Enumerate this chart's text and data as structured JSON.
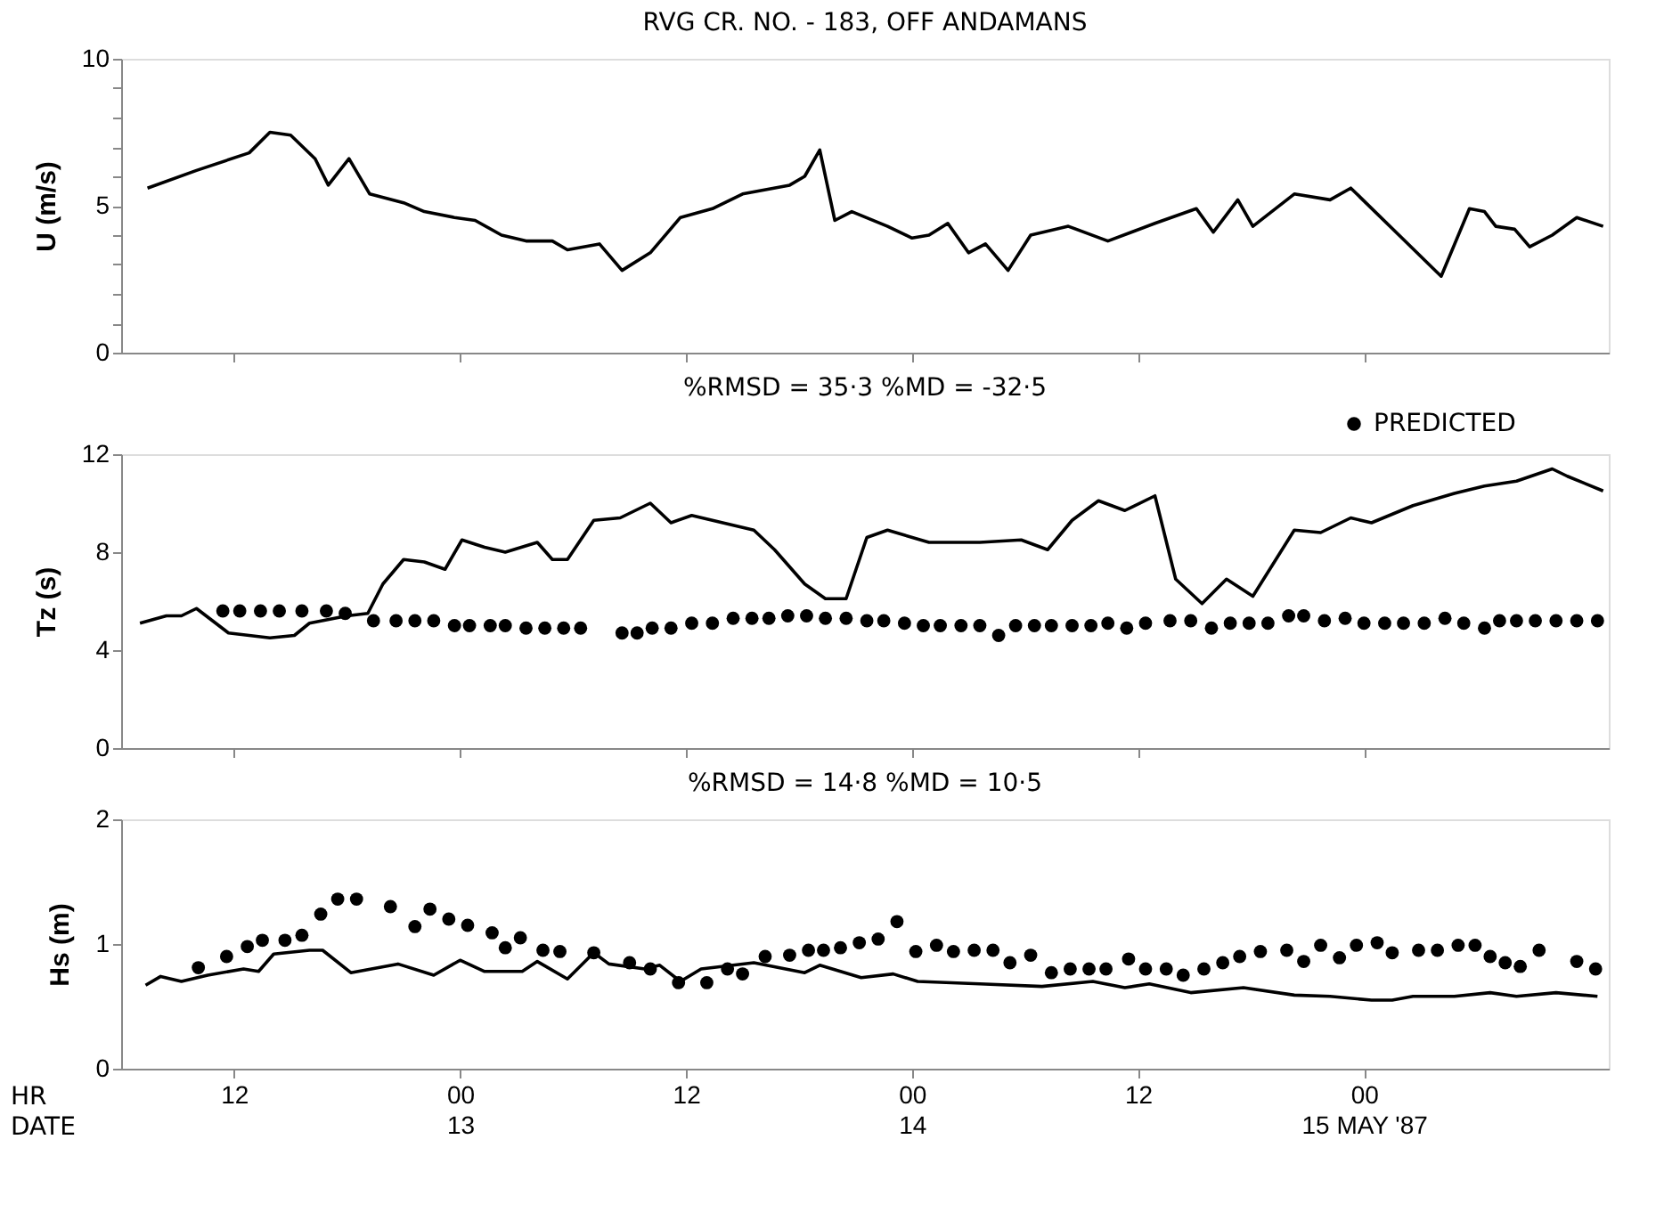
{
  "chart_data": [
    {
      "type": "line",
      "title": "RVG CR. NO. - 183, OFF ANDAMANS",
      "ylabel": "U (m/s)",
      "xlim": [
        "1987-05-12T06:00",
        "1987-05-15T13:00"
      ],
      "xticks": [
        {
          "value": "1987-05-12T12:00",
          "label": null
        },
        {
          "value": "1987-05-13T00:00",
          "label": null
        },
        {
          "value": "1987-05-13T12:00",
          "label": null
        },
        {
          "value": "1987-05-14T00:00",
          "label": null
        },
        {
          "value": "1987-05-14T12:00",
          "label": null
        },
        {
          "value": "1987-05-15T00:00",
          "label": null
        }
      ],
      "ylim": [
        0,
        10
      ],
      "yticks": [
        0,
        {
          "value": 1,
          "label": null
        },
        {
          "value": 2,
          "label": null
        },
        {
          "value": 3,
          "label": null
        },
        {
          "value": 4,
          "label": null
        },
        5,
        {
          "value": 6,
          "label": null
        },
        {
          "value": 7,
          "label": null
        },
        {
          "value": 8,
          "label": null
        },
        {
          "value": 9,
          "label": null
        },
        10
      ],
      "tick_labels": "y",
      "series": [
        {
          "type": "line",
          "color": "#000000",
          "x": [
            "1987-05-12T07:24",
            "1987-05-12T10:00",
            "1987-05-12T12:48",
            "1987-05-12T13:54",
            "1987-05-12T15:00",
            "1987-05-12T16:18",
            "1987-05-12T17:00",
            "1987-05-12T18:06",
            "1987-05-12T19:12",
            "1987-05-12T21:00",
            "1987-05-12T22:06",
            "1987-05-12T23:42",
            "1987-05-13T00:48",
            "1987-05-13T02:12",
            "1987-05-13T03:30",
            "1987-05-13T04:54",
            "1987-05-13T05:42",
            "1987-05-13T07:24",
            "1987-05-13T08:36",
            "1987-05-13T10:06",
            "1987-05-13T11:42",
            "1987-05-13T13:24",
            "1987-05-13T15:00",
            "1987-05-13T17:30",
            "1987-05-13T18:18",
            "1987-05-13T19:06",
            "1987-05-13T19:54",
            "1987-05-13T20:48",
            "1987-05-13T22:42",
            "1987-05-14T00:00",
            "1987-05-14T00:54",
            "1987-05-14T01:54",
            "1987-05-14T03:00",
            "1987-05-14T03:54",
            "1987-05-14T05:06",
            "1987-05-14T06:18",
            "1987-05-14T08:18",
            "1987-05-14T10:24",
            "1987-05-14T12:54",
            "1987-05-14T15:06",
            "1987-05-14T16:00",
            "1987-05-14T17:18",
            "1987-05-14T18:06",
            "1987-05-14T20:18",
            "1987-05-14T22:12",
            "1987-05-14T23:18",
            "1987-05-15T04:06",
            "1987-05-15T05:36",
            "1987-05-15T06:24",
            "1987-05-15T07:00",
            "1987-05-15T08:00",
            "1987-05-15T08:48",
            "1987-05-15T10:00",
            "1987-05-15T11:18",
            "1987-05-15T12:42"
          ],
          "values": [
            5.6,
            6.2,
            6.8,
            7.5,
            7.4,
            6.6,
            5.7,
            6.6,
            5.4,
            5.1,
            4.8,
            4.6,
            4.5,
            4.0,
            3.8,
            3.8,
            3.5,
            3.7,
            2.8,
            3.4,
            4.6,
            4.9,
            5.4,
            5.7,
            6.0,
            6.9,
            4.5,
            4.8,
            4.3,
            3.9,
            4.0,
            4.4,
            3.4,
            3.7,
            2.8,
            4.0,
            4.3,
            3.8,
            4.4,
            4.9,
            4.1,
            5.2,
            4.3,
            5.4,
            5.2,
            5.6,
            2.6,
            4.9,
            4.8,
            4.3,
            4.2,
            3.6,
            4.0,
            4.6,
            4.3
          ]
        }
      ]
    },
    {
      "type": "line",
      "title": "%RMSD = 35·3      %MD = -32·5",
      "ylabel": "Tz (s)",
      "xlim": [
        "1987-05-12T06:00",
        "1987-05-15T13:00"
      ],
      "xticks": [
        {
          "value": "1987-05-12T12:00",
          "label": null
        },
        {
          "value": "1987-05-13T00:00",
          "label": null
        },
        {
          "value": "1987-05-13T12:00",
          "label": null
        },
        {
          "value": "1987-05-14T00:00",
          "label": null
        },
        {
          "value": "1987-05-14T12:00",
          "label": null
        },
        {
          "value": "1987-05-15T00:00",
          "label": null
        }
      ],
      "ylim": [
        0,
        12
      ],
      "yticks": [
        0,
        4,
        8,
        12
      ],
      "tick_labels": "y",
      "legend": "top right",
      "series": [
        {
          "type": "line",
          "color": "#000000",
          "x": [
            "1987-05-12T07:00",
            "1987-05-12T08:24",
            "1987-05-12T09:12",
            "1987-05-12T10:00",
            "1987-05-12T11:42",
            "1987-05-12T13:54",
            "1987-05-12T15:12",
            "1987-05-12T16:00",
            "1987-05-12T18:00",
            "1987-05-12T19:06",
            "1987-05-12T19:54",
            "1987-05-12T21:00",
            "1987-05-12T22:06",
            "1987-05-12T23:12",
            "1987-05-13T00:06",
            "1987-05-13T01:18",
            "1987-05-13T02:24",
            "1987-05-13T04:06",
            "1987-05-13T04:54",
            "1987-05-13T05:42",
            "1987-05-13T07:06",
            "1987-05-13T08:30",
            "1987-05-13T10:06",
            "1987-05-13T11:12",
            "1987-05-13T12:18",
            "1987-05-13T15:36",
            "1987-05-13T16:42",
            "1987-05-13T18:18",
            "1987-05-13T19:24",
            "1987-05-13T20:30",
            "1987-05-13T21:36",
            "1987-05-13T22:42",
            "1987-05-14T00:54",
            "1987-05-14T03:36",
            "1987-05-14T05:48",
            "1987-05-14T07:12",
            "1987-05-14T08:30",
            "1987-05-14T09:54",
            "1987-05-14T11:18",
            "1987-05-14T12:54",
            "1987-05-14T14:00",
            "1987-05-14T15:24",
            "1987-05-14T16:42",
            "1987-05-14T18:06",
            "1987-05-14T20:18",
            "1987-05-14T21:42",
            "1987-05-14T23:18",
            "1987-05-15T00:24",
            "1987-05-15T02:36",
            "1987-05-15T04:48",
            "1987-05-15T06:24",
            "1987-05-15T08:06",
            "1987-05-15T10:00",
            "1987-05-15T10:48",
            "1987-05-15T12:42"
          ],
          "values": [
            5.1,
            5.4,
            5.4,
            5.7,
            4.7,
            4.5,
            4.6,
            5.1,
            5.4,
            5.5,
            6.7,
            7.7,
            7.6,
            7.3,
            8.5,
            8.2,
            8.0,
            8.4,
            7.7,
            7.7,
            9.3,
            9.4,
            10.0,
            9.2,
            9.5,
            8.9,
            8.1,
            6.7,
            6.1,
            6.1,
            8.6,
            8.9,
            8.4,
            8.4,
            8.5,
            8.1,
            9.3,
            10.1,
            9.7,
            10.3,
            6.9,
            5.9,
            6.9,
            6.2,
            8.9,
            8.8,
            9.4,
            9.2,
            9.9,
            10.4,
            10.7,
            10.9,
            11.4,
            11.1,
            10.5
          ]
        },
        {
          "type": "scatter",
          "name": "PREDICTED",
          "color": "#000000",
          "marker": "circle",
          "x": [
            "1987-05-12T11:24",
            "1987-05-12T12:18",
            "1987-05-12T13:24",
            "1987-05-12T14:24",
            "1987-05-12T15:36",
            "1987-05-12T16:54",
            "1987-05-12T17:54",
            "1987-05-12T19:24",
            "1987-05-12T20:36",
            "1987-05-12T21:36",
            "1987-05-12T22:36",
            "1987-05-12T23:42",
            "1987-05-13T00:30",
            "1987-05-13T01:36",
            "1987-05-13T02:24",
            "1987-05-13T03:30",
            "1987-05-13T04:30",
            "1987-05-13T05:30",
            "1987-05-13T06:24",
            "1987-05-13T08:36",
            "1987-05-13T09:24",
            "1987-05-13T10:12",
            "1987-05-13T11:12",
            "1987-05-13T12:18",
            "1987-05-13T13:24",
            "1987-05-13T14:30",
            "1987-05-13T15:30",
            "1987-05-13T16:24",
            "1987-05-13T17:24",
            "1987-05-13T18:24",
            "1987-05-13T19:24",
            "1987-05-13T20:30",
            "1987-05-13T21:36",
            "1987-05-13T22:30",
            "1987-05-13T23:36",
            "1987-05-14T00:36",
            "1987-05-14T01:30",
            "1987-05-14T02:36",
            "1987-05-14T03:36",
            "1987-05-14T04:36",
            "1987-05-14T05:30",
            "1987-05-14T06:30",
            "1987-05-14T07:24",
            "1987-05-14T08:30",
            "1987-05-14T09:30",
            "1987-05-14T10:24",
            "1987-05-14T11:24",
            "1987-05-14T12:24",
            "1987-05-14T13:42",
            "1987-05-14T14:48",
            "1987-05-14T15:54",
            "1987-05-14T16:54",
            "1987-05-14T17:54",
            "1987-05-14T18:54",
            "1987-05-14T20:00",
            "1987-05-14T20:48",
            "1987-05-14T21:54",
            "1987-05-14T23:00",
            "1987-05-15T00:00",
            "1987-05-15T01:06",
            "1987-05-15T02:06",
            "1987-05-15T03:12",
            "1987-05-15T04:18",
            "1987-05-15T05:18",
            "1987-05-15T06:24",
            "1987-05-15T07:12",
            "1987-05-15T08:06",
            "1987-05-15T09:06",
            "1987-05-15T10:12",
            "1987-05-15T11:18",
            "1987-05-15T12:24"
          ],
          "values": [
            5.6,
            5.6,
            5.6,
            5.6,
            5.6,
            5.6,
            5.5,
            5.2,
            5.2,
            5.2,
            5.2,
            5.0,
            5.0,
            5.0,
            5.0,
            4.9,
            4.9,
            4.9,
            4.9,
            4.7,
            4.7,
            4.9,
            4.9,
            5.1,
            5.1,
            5.3,
            5.3,
            5.3,
            5.4,
            5.4,
            5.3,
            5.3,
            5.2,
            5.2,
            5.1,
            5.0,
            5.0,
            5.0,
            5.0,
            4.6,
            5.0,
            5.0,
            5.0,
            5.0,
            5.0,
            5.1,
            4.9,
            5.1,
            5.2,
            5.2,
            4.9,
            5.1,
            5.1,
            5.1,
            5.4,
            5.4,
            5.2,
            5.3,
            5.1,
            5.1,
            5.1,
            5.1,
            5.3,
            5.1,
            4.9,
            5.2,
            5.2,
            5.2,
            5.2,
            5.2,
            5.2
          ]
        }
      ]
    },
    {
      "type": "line",
      "title": "%RMSD = 14·8    %MD =   10·5",
      "ylabel": "Hs (m)",
      "xlim": [
        "1987-05-12T06:00",
        "1987-05-15T13:00"
      ],
      "xticks": [
        {
          "value": "1987-05-12T12:00",
          "label": "12"
        },
        {
          "value": "1987-05-13T00:00",
          "label": "00\n13"
        },
        {
          "value": "1987-05-13T12:00",
          "label": "12"
        },
        {
          "value": "1987-05-14T00:00",
          "label": "00\n14"
        },
        {
          "value": "1987-05-14T12:00",
          "label": "12"
        },
        {
          "value": "1987-05-15T00:00",
          "label": "00\n15  MAY  '87"
        }
      ],
      "ylim": [
        0,
        2
      ],
      "yticks": [
        0,
        1,
        2
      ],
      "annotations": [
        "HR",
        "DATE"
      ],
      "series": [
        {
          "type": "line",
          "color": "#000000",
          "x": [
            "1987-05-12T07:18",
            "1987-05-12T08:06",
            "1987-05-12T09:12",
            "1987-05-12T10:36",
            "1987-05-12T12:30",
            "1987-05-12T13:18",
            "1987-05-12T14:06",
            "1987-05-12T16:00",
            "1987-05-12T16:42",
            "1987-05-12T18:12",
            "1987-05-12T20:42",
            "1987-05-12T22:36",
            "1987-05-13T00:00",
            "1987-05-13T01:18",
            "1987-05-13T03:18",
            "1987-05-13T04:06",
            "1987-05-13T05:42",
            "1987-05-13T07:06",
            "1987-05-13T07:54",
            "1987-05-13T09:48",
            "1987-05-13T10:36",
            "1987-05-13T11:42",
            "1987-05-13T12:48",
            "1987-05-13T15:36",
            "1987-05-13T18:18",
            "1987-05-13T19:06",
            "1987-05-13T21:18",
            "1987-05-13T23:00",
            "1987-05-14T00:18",
            "1987-05-14T03:36",
            "1987-05-14T06:54",
            "1987-05-14T09:36",
            "1987-05-14T11:18",
            "1987-05-14T12:36",
            "1987-05-14T14:48",
            "1987-05-14T17:36",
            "1987-05-14T20:18",
            "1987-05-14T22:12",
            "1987-05-15T00:24",
            "1987-05-15T01:30",
            "1987-05-15T02:36",
            "1987-05-15T04:48",
            "1987-05-15T06:42",
            "1987-05-15T08:06",
            "1987-05-15T10:12",
            "1987-05-15T12:24"
          ],
          "values": [
            0.67,
            0.74,
            0.7,
            0.75,
            0.8,
            0.78,
            0.92,
            0.95,
            0.95,
            0.77,
            0.84,
            0.75,
            0.87,
            0.78,
            0.78,
            0.86,
            0.72,
            0.93,
            0.84,
            0.8,
            0.83,
            0.7,
            0.8,
            0.85,
            0.77,
            0.83,
            0.73,
            0.76,
            0.7,
            0.68,
            0.66,
            0.7,
            0.65,
            0.68,
            0.61,
            0.65,
            0.59,
            0.58,
            0.55,
            0.55,
            0.58,
            0.58,
            0.61,
            0.58,
            0.61,
            0.58
          ]
        },
        {
          "type": "scatter",
          "color": "#000000",
          "marker": "circle",
          "x": [
            "1987-05-12T10:06",
            "1987-05-12T11:36",
            "1987-05-12T12:42",
            "1987-05-12T13:30",
            "1987-05-12T14:42",
            "1987-05-12T15:36",
            "1987-05-12T16:36",
            "1987-05-12T17:30",
            "1987-05-12T18:30",
            "1987-05-12T20:18",
            "1987-05-12T21:36",
            "1987-05-12T22:24",
            "1987-05-12T23:24",
            "1987-05-13T00:24",
            "1987-05-13T01:42",
            "1987-05-13T02:24",
            "1987-05-13T03:12",
            "1987-05-13T04:24",
            "1987-05-13T05:18",
            "1987-05-13T07:06",
            "1987-05-13T09:00",
            "1987-05-13T10:06",
            "1987-05-13T11:36",
            "1987-05-13T13:06",
            "1987-05-13T14:12",
            "1987-05-13T15:00",
            "1987-05-13T16:12",
            "1987-05-13T17:30",
            "1987-05-13T18:30",
            "1987-05-13T19:18",
            "1987-05-13T20:12",
            "1987-05-13T21:12",
            "1987-05-13T22:12",
            "1987-05-13T23:12",
            "1987-05-14T00:12",
            "1987-05-14T01:18",
            "1987-05-14T02:12",
            "1987-05-14T03:18",
            "1987-05-14T04:18",
            "1987-05-14T05:12",
            "1987-05-14T06:18",
            "1987-05-14T07:24",
            "1987-05-14T08:24",
            "1987-05-14T09:24",
            "1987-05-14T10:18",
            "1987-05-14T11:30",
            "1987-05-14T12:24",
            "1987-05-14T13:30",
            "1987-05-14T14:24",
            "1987-05-14T15:30",
            "1987-05-14T16:30",
            "1987-05-14T17:24",
            "1987-05-14T18:30",
            "1987-05-14T19:54",
            "1987-05-14T20:48",
            "1987-05-14T21:42",
            "1987-05-14T22:42",
            "1987-05-14T23:36",
            "1987-05-15T00:42",
            "1987-05-15T01:30",
            "1987-05-15T02:54",
            "1987-05-15T03:54",
            "1987-05-15T05:00",
            "1987-05-15T05:54",
            "1987-05-15T06:42",
            "1987-05-15T07:30",
            "1987-05-15T08:18",
            "1987-05-15T09:18",
            "1987-05-15T11:18",
            "1987-05-15T12:18"
          ],
          "values": [
            0.81,
            0.9,
            0.98,
            1.03,
            1.03,
            1.07,
            1.24,
            1.36,
            1.36,
            1.3,
            1.14,
            1.28,
            1.2,
            1.15,
            1.09,
            0.97,
            1.05,
            0.95,
            0.94,
            0.93,
            0.85,
            0.8,
            0.69,
            0.69,
            0.8,
            0.76,
            0.9,
            0.91,
            0.95,
            0.95,
            0.97,
            1.01,
            1.04,
            1.18,
            0.94,
            0.99,
            0.94,
            0.95,
            0.95,
            0.85,
            0.91,
            0.77,
            0.8,
            0.8,
            0.8,
            0.88,
            0.8,
            0.8,
            0.75,
            0.8,
            0.85,
            0.9,
            0.94,
            0.95,
            0.86,
            0.99,
            0.89,
            0.99,
            1.01,
            0.93,
            0.95,
            0.95,
            0.99,
            0.99,
            0.9,
            0.85,
            0.82,
            0.95,
            0.86,
            0.8
          ]
        }
      ]
    }
  ]
}
